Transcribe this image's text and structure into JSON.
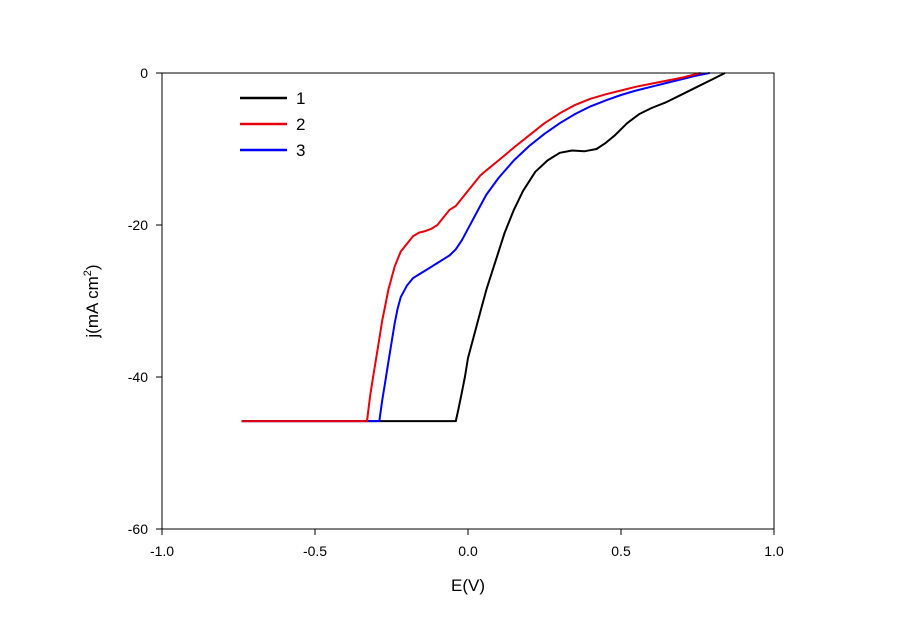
{
  "chart_data": {
    "type": "line",
    "xlabel": "E(V)",
    "ylabel_main": "j(mA cm",
    "ylabel_sup": "2",
    "ylabel_close": ")",
    "xlim": [
      -1.0,
      1.0
    ],
    "ylim": [
      -60,
      0
    ],
    "xticks": [
      -1.0,
      -0.5,
      0.0,
      0.5,
      1.0
    ],
    "xtick_labels": [
      "-1.0",
      "-0.5",
      "0.0",
      "0.5",
      "1.0"
    ],
    "yticks": [
      0,
      -20,
      -40,
      -60
    ],
    "ytick_labels": [
      "0",
      "-20",
      "-40",
      "-60"
    ],
    "grid": false,
    "legend_position": "top-left",
    "series": [
      {
        "name": "1",
        "color": "#000000",
        "x": [
          -0.74,
          -0.4,
          -0.1,
          -0.04,
          -0.03,
          -0.02,
          -0.01,
          0.0,
          0.02,
          0.04,
          0.06,
          0.08,
          0.1,
          0.12,
          0.15,
          0.18,
          0.22,
          0.26,
          0.3,
          0.34,
          0.38,
          0.42,
          0.45,
          0.48,
          0.52,
          0.56,
          0.6,
          0.65,
          0.7,
          0.75,
          0.8,
          0.84
        ],
        "y": [
          -45.8,
          -45.8,
          -45.8,
          -45.8,
          -44.0,
          -42.0,
          -40.0,
          -37.5,
          -34.5,
          -31.5,
          -28.5,
          -26.0,
          -23.5,
          -21.0,
          -18.0,
          -15.5,
          -13.0,
          -11.5,
          -10.5,
          -10.2,
          -10.3,
          -10.0,
          -9.2,
          -8.2,
          -6.6,
          -5.4,
          -4.6,
          -3.8,
          -2.8,
          -1.8,
          -0.8,
          0.0
        ]
      },
      {
        "name": "2",
        "color": "#e8000b",
        "x": [
          -0.74,
          -0.5,
          -0.33,
          -0.32,
          -0.31,
          -0.3,
          -0.29,
          -0.28,
          -0.27,
          -0.26,
          -0.24,
          -0.22,
          -0.2,
          -0.18,
          -0.16,
          -0.14,
          -0.12,
          -0.1,
          -0.08,
          -0.06,
          -0.04,
          -0.02,
          0.0,
          0.02,
          0.04,
          0.06,
          0.1,
          0.15,
          0.2,
          0.25,
          0.3,
          0.35,
          0.4,
          0.45,
          0.5,
          0.55,
          0.6,
          0.65,
          0.7,
          0.76
        ],
        "y": [
          -45.8,
          -45.8,
          -45.8,
          -42.5,
          -40.0,
          -37.5,
          -35.0,
          -32.5,
          -30.5,
          -28.5,
          -25.5,
          -23.5,
          -22.5,
          -21.5,
          -21.0,
          -20.8,
          -20.5,
          -20.0,
          -19.0,
          -18.0,
          -17.5,
          -16.5,
          -15.5,
          -14.5,
          -13.5,
          -12.8,
          -11.5,
          -9.8,
          -8.2,
          -6.6,
          -5.3,
          -4.2,
          -3.4,
          -2.8,
          -2.3,
          -1.8,
          -1.4,
          -1.0,
          -0.6,
          0.0
        ]
      },
      {
        "name": "3",
        "color": "#0000ff",
        "x": [
          -0.74,
          -0.5,
          -0.29,
          -0.28,
          -0.27,
          -0.26,
          -0.25,
          -0.24,
          -0.23,
          -0.22,
          -0.2,
          -0.18,
          -0.16,
          -0.14,
          -0.12,
          -0.1,
          -0.08,
          -0.06,
          -0.04,
          -0.02,
          0.0,
          0.02,
          0.04,
          0.06,
          0.1,
          0.15,
          0.2,
          0.25,
          0.3,
          0.35,
          0.4,
          0.45,
          0.5,
          0.55,
          0.6,
          0.65,
          0.7,
          0.74,
          0.79
        ],
        "y": [
          -45.8,
          -45.8,
          -45.8,
          -43.0,
          -40.5,
          -38.0,
          -35.5,
          -33.0,
          -31.0,
          -29.5,
          -28.0,
          -27.0,
          -26.5,
          -26.0,
          -25.5,
          -25.0,
          -24.5,
          -24.0,
          -23.2,
          -22.0,
          -20.5,
          -19.0,
          -17.5,
          -16.0,
          -13.8,
          -11.5,
          -9.6,
          -8.0,
          -6.6,
          -5.4,
          -4.4,
          -3.6,
          -2.9,
          -2.3,
          -1.8,
          -1.3,
          -0.8,
          -0.4,
          0.0
        ]
      }
    ]
  }
}
